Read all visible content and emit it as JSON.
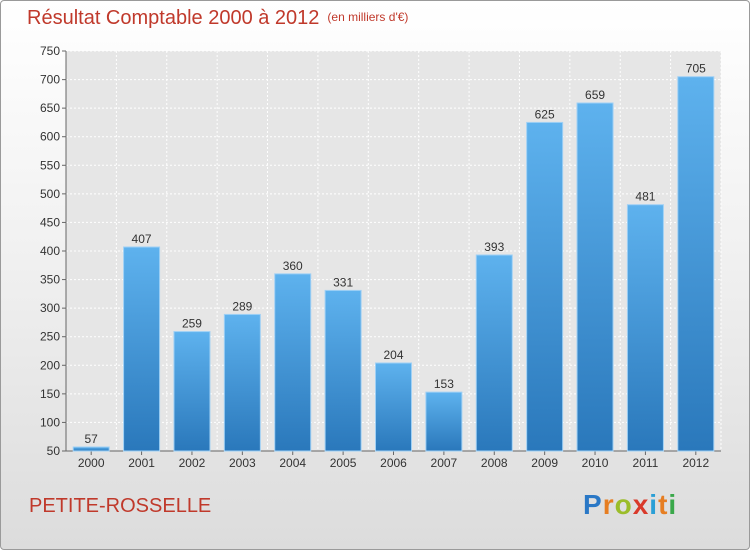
{
  "chart_data": {
    "type": "bar",
    "title": "Résultat Comptable 2000 à 2012",
    "subtitle": "(en milliers d'€)",
    "categories": [
      "2000",
      "2001",
      "2002",
      "2003",
      "2004",
      "2005",
      "2006",
      "2007",
      "2008",
      "2009",
      "2010",
      "2011",
      "2012"
    ],
    "values": [
      57,
      407,
      259,
      289,
      360,
      331,
      204,
      153,
      393,
      625,
      659,
      481,
      705
    ],
    "ylim": [
      50,
      750
    ],
    "yticks": [
      50,
      100,
      150,
      200,
      250,
      300,
      350,
      400,
      450,
      500,
      550,
      600,
      650,
      700,
      750
    ],
    "grid": true,
    "bar_color": "#3d8fd1"
  },
  "commune": "PETITE-ROSSELLE",
  "logo": {
    "letters": [
      "P",
      "r",
      "o",
      "x",
      "i",
      "t",
      "i"
    ],
    "colors": [
      "#2a78c6",
      "#e67e22",
      "#9bbd2a",
      "#d93a2b",
      "#2a9fd6",
      "#e67e22",
      "#3aa84a"
    ]
  }
}
